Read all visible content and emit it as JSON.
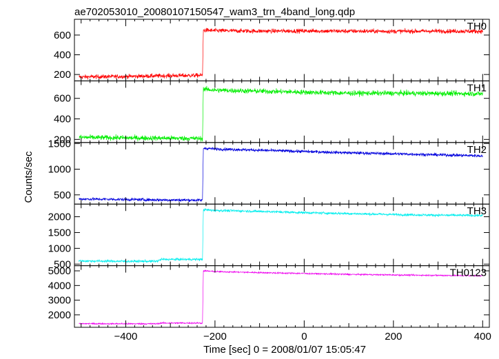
{
  "chart_data": {
    "type": "line",
    "title": "ae702053010_20080107150547_wam3_trn_4band_long.qdp",
    "xlabel": "Time [sec] 0 = 2008/01/07 15:05:47",
    "ylabel": "Counts/sec",
    "xlim": [
      -515,
      415
    ],
    "x_ticks": [
      -400,
      -200,
      0,
      200,
      400
    ],
    "x_tick_labels": [
      "−400",
      "−200",
      "0",
      "200",
      "400"
    ],
    "grid": false,
    "legend": "none",
    "panels": [
      {
        "name": "TH0",
        "color": "#ff0000",
        "ylim": [
          135,
          760
        ],
        "y_ticks": [
          200,
          400,
          600
        ],
        "segments": [
          {
            "x": [
              -505,
              -400,
              -300,
              -250,
              -228
            ],
            "y": [
              175,
              180,
              188,
              190,
              192
            ]
          },
          {
            "x": [
              -226,
              -200,
              -100,
              0,
              100,
              200,
              300,
              400
            ],
            "y": [
              650,
              645,
              640,
              642,
              640,
              638,
              640,
              638
            ]
          }
        ],
        "noise": 22
      },
      {
        "name": "TH1",
        "color": "#00ee00",
        "ylim": [
          170,
          770
        ],
        "y_ticks": [
          200,
          400,
          600
        ],
        "segments": [
          {
            "x": [
              -505,
              -400,
              -300,
              -250,
              -228
            ],
            "y": [
              220,
              215,
              212,
              210,
              208
            ]
          },
          {
            "x": [
              -226,
              -200,
              -100,
              0,
              100,
              200,
              300,
              400
            ],
            "y": [
              690,
              680,
              670,
              660,
              650,
              650,
              648,
              645
            ]
          }
        ],
        "noise": 25
      },
      {
        "name": "TH2",
        "color": "#0000dd",
        "ylim": [
          320,
          1520
        ],
        "y_ticks": [
          500,
          1000,
          1500
        ],
        "segments": [
          {
            "x": [
              -505,
              -400,
              -300,
              -250,
              -228
            ],
            "y": [
              420,
              410,
              400,
              398,
              395
            ]
          },
          {
            "x": [
              -226,
              -200,
              -100,
              0,
              100,
              200,
              300,
              400
            ],
            "y": [
              1410,
              1395,
              1370,
              1345,
              1320,
              1300,
              1280,
              1260
            ]
          }
        ],
        "noise": 30
      },
      {
        "name": "TH3",
        "color": "#00eeee",
        "ylim": [
          450,
          2400
        ],
        "y_ticks": [
          500,
          1000,
          1500,
          2000
        ],
        "segments": [
          {
            "x": [
              -505,
              -400,
              -330,
              -320,
              -228
            ],
            "y": [
              600,
              590,
              590,
              650,
              650
            ]
          },
          {
            "x": [
              -226,
              -200,
              -100,
              0,
              100,
              200,
              300,
              400
            ],
            "y": [
              2220,
              2200,
              2170,
              2130,
              2100,
              2070,
              2050,
              2040
            ]
          }
        ],
        "noise": 40
      },
      {
        "name": "TH0123",
        "color": "#ee00ee",
        "ylim": [
          1150,
          5350
        ],
        "y_ticks": [
          2000,
          3000,
          4000,
          5000
        ],
        "segments": [
          {
            "x": [
              -505,
              -400,
              -330,
              -320,
              -228
            ],
            "y": [
              1400,
              1390,
              1390,
              1440,
              1440
            ]
          },
          {
            "x": [
              -226,
              -200,
              -100,
              0,
              100,
              200,
              300,
              400
            ],
            "y": [
              5000,
              4950,
              4880,
              4820,
              4760,
              4720,
              4690,
              4660
            ]
          }
        ],
        "noise": 50
      }
    ]
  }
}
